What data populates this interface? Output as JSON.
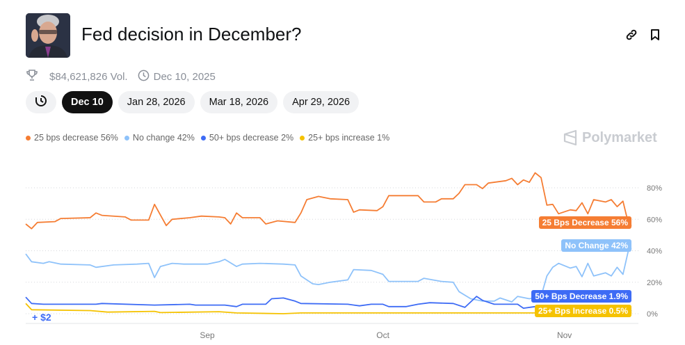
{
  "header": {
    "title": "Fed decision in December?",
    "volume": "$84,621,826 Vol.",
    "end_date": "Dec 10, 2025",
    "icons": [
      "link-icon",
      "bookmark-icon",
      "trophy-icon",
      "clock-icon"
    ]
  },
  "tabs": [
    {
      "label": "Dec 10",
      "active": true
    },
    {
      "label": "Jan 28, 2026"
    },
    {
      "label": "Mar 18, 2026"
    },
    {
      "label": "Apr 29, 2026"
    }
  ],
  "brand": "Polymarket",
  "bonus_text": "+ $2",
  "chart_data": {
    "type": "line",
    "ylim": [
      0,
      95
    ],
    "y_ticks": [
      "0%",
      "20%",
      "40%",
      "60%",
      "80%"
    ],
    "y_tick_values": [
      0,
      20,
      40,
      60,
      80
    ],
    "x_ticks": [
      "Sep",
      "Oct",
      "Nov"
    ],
    "x_tick_values": [
      "2025-09-01",
      "2025-10-01",
      "2025-11-01"
    ],
    "x_range": [
      "2025-08-01",
      "2025-11-13"
    ],
    "grid": true,
    "legend_position": "top-left",
    "series": [
      {
        "name": "25 bps decrease",
        "legend": "25 bps decrease 56%",
        "end_label": "25 Bps Decrease 56%",
        "color": "#f57d33",
        "points": [
          [
            "2025-08-01",
            57
          ],
          [
            "2025-08-02",
            54
          ],
          [
            "2025-08-03",
            58
          ],
          [
            "2025-08-06",
            58.5
          ],
          [
            "2025-08-07",
            60.5
          ],
          [
            "2025-08-12",
            61
          ],
          [
            "2025-08-13",
            64
          ],
          [
            "2025-08-14",
            62.5
          ],
          [
            "2025-08-18",
            61.5
          ],
          [
            "2025-08-19",
            59.5
          ],
          [
            "2025-08-22",
            59.5
          ],
          [
            "2025-08-23",
            69.5
          ],
          [
            "2025-08-25",
            56
          ],
          [
            "2025-08-26",
            60
          ],
          [
            "2025-08-29",
            61
          ],
          [
            "2025-08-31",
            62
          ],
          [
            "2025-09-03",
            61.5
          ],
          [
            "2025-09-04",
            61
          ],
          [
            "2025-09-05",
            57
          ],
          [
            "2025-09-06",
            64
          ],
          [
            "2025-09-07",
            61
          ],
          [
            "2025-09-10",
            61
          ],
          [
            "2025-09-11",
            57
          ],
          [
            "2025-09-13",
            59
          ],
          [
            "2025-09-16",
            58
          ],
          [
            "2025-09-17",
            64
          ],
          [
            "2025-09-18",
            72.5
          ],
          [
            "2025-09-20",
            74.5
          ],
          [
            "2025-09-22",
            73
          ],
          [
            "2025-09-25",
            72.5
          ],
          [
            "2025-09-26",
            64.5
          ],
          [
            "2025-09-27",
            66
          ],
          [
            "2025-09-30",
            65.5
          ],
          [
            "2025-10-01",
            68
          ],
          [
            "2025-10-02",
            75
          ],
          [
            "2025-10-07",
            75
          ],
          [
            "2025-10-08",
            71
          ],
          [
            "2025-10-10",
            71
          ],
          [
            "2025-10-11",
            73
          ],
          [
            "2025-10-13",
            73
          ],
          [
            "2025-10-14",
            76.5
          ],
          [
            "2025-10-15",
            82
          ],
          [
            "2025-10-17",
            82
          ],
          [
            "2025-10-18",
            79.5
          ],
          [
            "2025-10-19",
            83
          ],
          [
            "2025-10-22",
            84.5
          ],
          [
            "2025-10-23",
            86
          ],
          [
            "2025-10-24",
            82
          ],
          [
            "2025-10-25",
            85
          ],
          [
            "2025-10-26",
            83.5
          ],
          [
            "2025-10-27",
            89.5
          ],
          [
            "2025-10-28",
            86.5
          ],
          [
            "2025-10-29",
            69
          ],
          [
            "2025-10-30",
            69.5
          ],
          [
            "2025-10-31",
            63.5
          ],
          [
            "2025-11-02",
            66
          ],
          [
            "2025-11-03",
            65.5
          ],
          [
            "2025-11-04",
            70.5
          ],
          [
            "2025-11-05",
            63.5
          ],
          [
            "2025-11-06",
            72.5
          ],
          [
            "2025-11-08",
            71
          ],
          [
            "2025-11-09",
            72.5
          ],
          [
            "2025-11-10",
            68
          ],
          [
            "2025-11-11",
            71.5
          ],
          [
            "2025-11-12",
            56
          ]
        ]
      },
      {
        "name": "No change",
        "legend": "No change 42%",
        "end_label": "No Change 42%",
        "color": "#8ec2fa",
        "points": [
          [
            "2025-08-01",
            38
          ],
          [
            "2025-08-02",
            33
          ],
          [
            "2025-08-04",
            32
          ],
          [
            "2025-08-05",
            33
          ],
          [
            "2025-08-07",
            31.5
          ],
          [
            "2025-08-12",
            31
          ],
          [
            "2025-08-13",
            29.5
          ],
          [
            "2025-08-16",
            31
          ],
          [
            "2025-08-20",
            31.5
          ],
          [
            "2025-08-22",
            32
          ],
          [
            "2025-08-23",
            23
          ],
          [
            "2025-08-24",
            30
          ],
          [
            "2025-08-26",
            32
          ],
          [
            "2025-08-28",
            31.5
          ],
          [
            "2025-09-01",
            31.5
          ],
          [
            "2025-09-03",
            33
          ],
          [
            "2025-09-04",
            34.5
          ],
          [
            "2025-09-06",
            30
          ],
          [
            "2025-09-07",
            31.5
          ],
          [
            "2025-09-10",
            32
          ],
          [
            "2025-09-14",
            31.5
          ],
          [
            "2025-09-16",
            31
          ],
          [
            "2025-09-17",
            24
          ],
          [
            "2025-09-19",
            19
          ],
          [
            "2025-09-20",
            18.5
          ],
          [
            "2025-09-22",
            20
          ],
          [
            "2025-09-25",
            21.5
          ],
          [
            "2025-09-26",
            28
          ],
          [
            "2025-09-29",
            27.5
          ],
          [
            "2025-10-01",
            25
          ],
          [
            "2025-10-02",
            20.5
          ],
          [
            "2025-10-07",
            20.5
          ],
          [
            "2025-10-08",
            22.5
          ],
          [
            "2025-10-11",
            20.5
          ],
          [
            "2025-10-13",
            20
          ],
          [
            "2025-10-14",
            14
          ],
          [
            "2025-10-16",
            9.5
          ],
          [
            "2025-10-18",
            8
          ],
          [
            "2025-10-20",
            8
          ],
          [
            "2025-10-21",
            10
          ],
          [
            "2025-10-23",
            7.5
          ],
          [
            "2025-10-24",
            11
          ],
          [
            "2025-10-26",
            9.5
          ],
          [
            "2025-10-28",
            11
          ],
          [
            "2025-10-29",
            24
          ],
          [
            "2025-10-30",
            29.5
          ],
          [
            "2025-10-31",
            32
          ],
          [
            "2025-11-02",
            29
          ],
          [
            "2025-11-03",
            30
          ],
          [
            "2025-11-04",
            23.5
          ],
          [
            "2025-11-05",
            32
          ],
          [
            "2025-11-06",
            24
          ],
          [
            "2025-11-08",
            26
          ],
          [
            "2025-11-09",
            24
          ],
          [
            "2025-11-10",
            29.5
          ],
          [
            "2025-11-11",
            25
          ],
          [
            "2025-11-12",
            41.5
          ]
        ]
      },
      {
        "name": "50+ bps decrease",
        "legend": "50+ bps decrease 2%",
        "end_label": "50+ Bps Decrease 1.9%",
        "color": "#3d6bf5",
        "points": [
          [
            "2025-08-01",
            10.5
          ],
          [
            "2025-08-02",
            6.5
          ],
          [
            "2025-08-04",
            6
          ],
          [
            "2025-08-13",
            6
          ],
          [
            "2025-08-14",
            6.5
          ],
          [
            "2025-08-23",
            5.5
          ],
          [
            "2025-08-29",
            6
          ],
          [
            "2025-08-30",
            5.5
          ],
          [
            "2025-09-04",
            5.5
          ],
          [
            "2025-09-06",
            4.5
          ],
          [
            "2025-09-07",
            6
          ],
          [
            "2025-09-11",
            6
          ],
          [
            "2025-09-12",
            9.5
          ],
          [
            "2025-09-14",
            10
          ],
          [
            "2025-09-16",
            8
          ],
          [
            "2025-09-17",
            6.5
          ],
          [
            "2025-09-25",
            6
          ],
          [
            "2025-09-27",
            5
          ],
          [
            "2025-09-29",
            6
          ],
          [
            "2025-10-01",
            6
          ],
          [
            "2025-10-02",
            4.5
          ],
          [
            "2025-10-05",
            4.5
          ],
          [
            "2025-10-07",
            6
          ],
          [
            "2025-10-09",
            7
          ],
          [
            "2025-10-13",
            6.5
          ],
          [
            "2025-10-15",
            4
          ],
          [
            "2025-10-17",
            11
          ],
          [
            "2025-10-18",
            8.5
          ],
          [
            "2025-10-20",
            6
          ],
          [
            "2025-10-24",
            6
          ],
          [
            "2025-10-25",
            3.5
          ],
          [
            "2025-10-27",
            4.5
          ],
          [
            "2025-11-12",
            1.9
          ]
        ]
      },
      {
        "name": "25+ bps increase",
        "legend": "25+ bps increase 1%",
        "end_label": "25+ Bps Increase 0.5%",
        "color": "#f5c200",
        "points": [
          [
            "2025-08-01",
            6.5
          ],
          [
            "2025-08-02",
            2.5
          ],
          [
            "2025-08-12",
            2
          ],
          [
            "2025-08-15",
            1
          ],
          [
            "2025-08-23",
            1.5
          ],
          [
            "2025-08-24",
            0.7
          ],
          [
            "2025-09-03",
            1.3
          ],
          [
            "2025-09-06",
            0.5
          ],
          [
            "2025-09-14",
            0
          ],
          [
            "2025-09-17",
            0.5
          ],
          [
            "2025-11-12",
            0.5
          ]
        ]
      }
    ]
  }
}
